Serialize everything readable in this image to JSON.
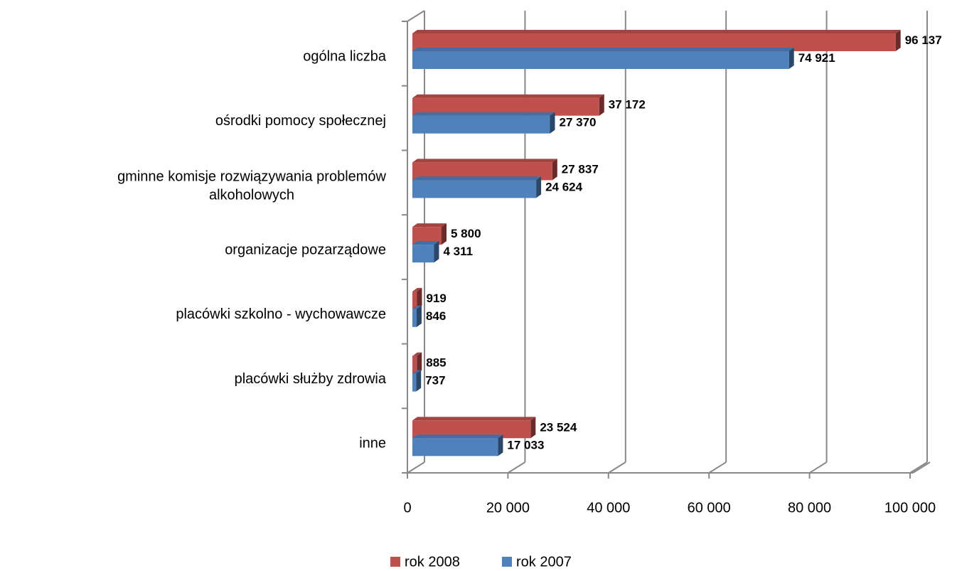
{
  "chart_data": {
    "type": "bar",
    "orientation": "horizontal",
    "categories": [
      "ogólna liczba",
      "ośrodki pomocy społecznej",
      "gminne komisje rozwiązywania problemów alkoholowych",
      "organizacje pozarządowe",
      "placówki szkolno - wychowawcze",
      "placówki służby zdrowia",
      "inne"
    ],
    "series": [
      {
        "name": "rok 2008",
        "color": "#c0504d",
        "values": [
          96137,
          37172,
          27837,
          5800,
          919,
          885,
          23524
        ],
        "value_labels": [
          "96 137",
          "37 172",
          "27 837",
          "5 800",
          "919",
          "885",
          "23 524"
        ]
      },
      {
        "name": "rok 2007",
        "color": "#4f81bd",
        "values": [
          74921,
          27370,
          24624,
          4311,
          846,
          737,
          17033
        ],
        "value_labels": [
          "74 921",
          "27 370",
          "24 624",
          "4 311",
          "846",
          "737",
          "17 033"
        ]
      }
    ],
    "xlim": [
      0,
      100000
    ],
    "xticks": [
      0,
      {
        "value": 20000,
        "label": "20 000"
      },
      {
        "value": 40000,
        "label": "40 000"
      },
      {
        "value": 60000,
        "label": "60 000"
      },
      {
        "value": 80000,
        "label": "80 000"
      },
      {
        "value": 100000,
        "label": "100 000"
      }
    ],
    "grid": true,
    "legend": "bottom"
  }
}
